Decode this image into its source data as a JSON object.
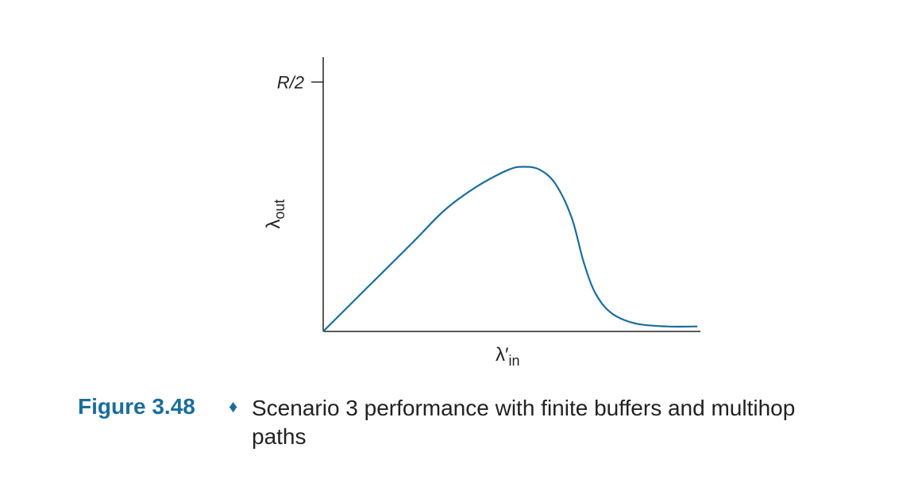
{
  "chart_data": {
    "type": "line",
    "ylabel": {
      "text": "λ",
      "sub": "out"
    },
    "xlabel": {
      "text": "λ′",
      "sub": "in"
    },
    "x": [
      0,
      0.112,
      0.239,
      0.323,
      0.408,
      0.493,
      0.535,
      0.577,
      0.619,
      0.662,
      0.693,
      0.725,
      0.767,
      0.831,
      0.915,
      0.996
    ],
    "series": [
      {
        "color": "#1a6e99",
        "values": [
          0,
          0.084,
          0.179,
          0.243,
          0.29,
          0.324,
          0.33,
          0.324,
          0.295,
          0.227,
          0.14,
          0.076,
          0.037,
          0.016,
          0.01,
          0.01
        ]
      }
    ],
    "xlim": [
      0,
      1
    ],
    "ylim": [
      0,
      0.55
    ],
    "yticks": [
      {
        "value": 0.5,
        "label": "R/2"
      }
    ]
  },
  "caption": {
    "figure_label": "Figure 3.48",
    "separator": "♦",
    "text": "Scenario 3 performance with finite buffers and multihop paths"
  }
}
